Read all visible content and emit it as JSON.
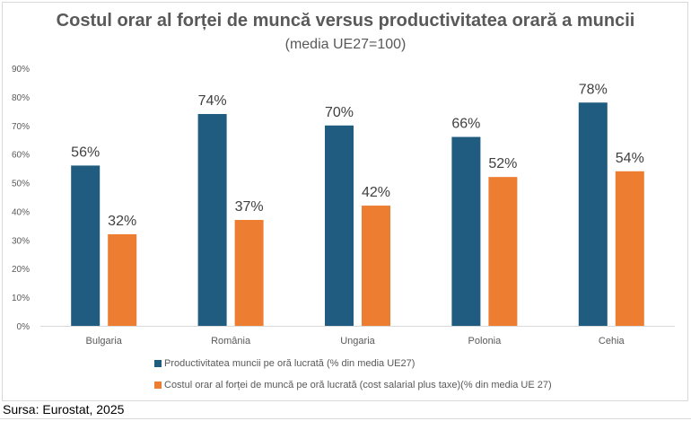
{
  "chart_data": {
    "type": "bar",
    "title": "Costul orar al forței de muncă versus productivitatea orară a muncii",
    "subtitle": "(media UE27=100)",
    "categories": [
      "Bulgaria",
      "România",
      "Ungaria",
      "Polonia",
      "Cehia"
    ],
    "series": [
      {
        "name": "Productivitatea muncii pe oră lucrată (% din media UE27)",
        "values": [
          56,
          74,
          70,
          66,
          78
        ],
        "color": "#1F5C7F"
      },
      {
        "name": "Costul orar al forței de muncă pe oră lucrată (cost salarial plus taxe)(% din media UE 27)",
        "values": [
          32,
          37,
          42,
          52,
          54
        ],
        "color": "#ED7D31"
      }
    ],
    "data_labels": [
      [
        "56%",
        "74%",
        "70%",
        "66%",
        "78%"
      ],
      [
        "32%",
        "37%",
        "42%",
        "52%",
        "54%"
      ]
    ],
    "ylim": [
      0,
      90
    ],
    "yticks": [
      "0%",
      "10%",
      "20%",
      "30%",
      "40%",
      "50%",
      "60%",
      "70%",
      "80%",
      "90%"
    ],
    "grid": false,
    "legend_position": "bottom"
  },
  "source": "Sursa: Eurostat, 2025"
}
